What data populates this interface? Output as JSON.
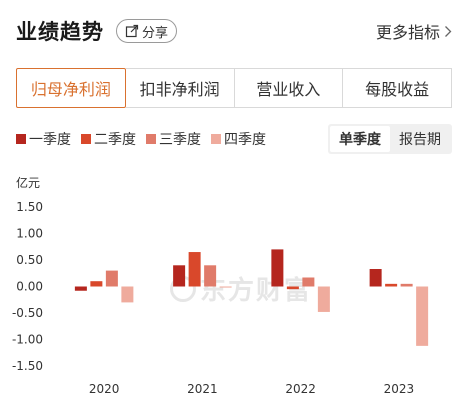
{
  "header": {
    "title": "业绩趋势",
    "share_label": "分享",
    "more_label": "更多指标"
  },
  "tabs": [
    {
      "label": "归母净利润",
      "active": true
    },
    {
      "label": "扣非净利润",
      "active": false
    },
    {
      "label": "营业收入",
      "active": false
    },
    {
      "label": "每股收益",
      "active": false
    }
  ],
  "toggle": {
    "single_quarter": "单季度",
    "report_period": "报告期",
    "selected": "单季度"
  },
  "watermark": "东方财富",
  "colors": {
    "accent": "#d9712f",
    "q1": "#b5261e",
    "q2": "#d9482b",
    "q3": "#e07b6a",
    "q4": "#efab9d"
  },
  "chart_data": {
    "type": "bar",
    "unit": "亿元",
    "categories": [
      "2020",
      "2021",
      "2022",
      "2023"
    ],
    "series": [
      {
        "name": "一季度",
        "values": [
          -0.08,
          0.4,
          0.7,
          0.33
        ]
      },
      {
        "name": "二季度",
        "values": [
          0.1,
          0.65,
          -0.05,
          0.05
        ]
      },
      {
        "name": "三季度",
        "values": [
          0.3,
          0.4,
          0.17,
          0.05
        ]
      },
      {
        "name": "四季度",
        "values": [
          -0.3,
          -0.02,
          -0.48,
          -1.12
        ]
      }
    ],
    "yticks": [
      "1.50",
      "1.00",
      "0.50",
      "0.00",
      "-0.50",
      "-1.00",
      "-1.50"
    ],
    "ylim": [
      -1.5,
      1.5
    ],
    "legend": "top-left",
    "grid": false
  }
}
